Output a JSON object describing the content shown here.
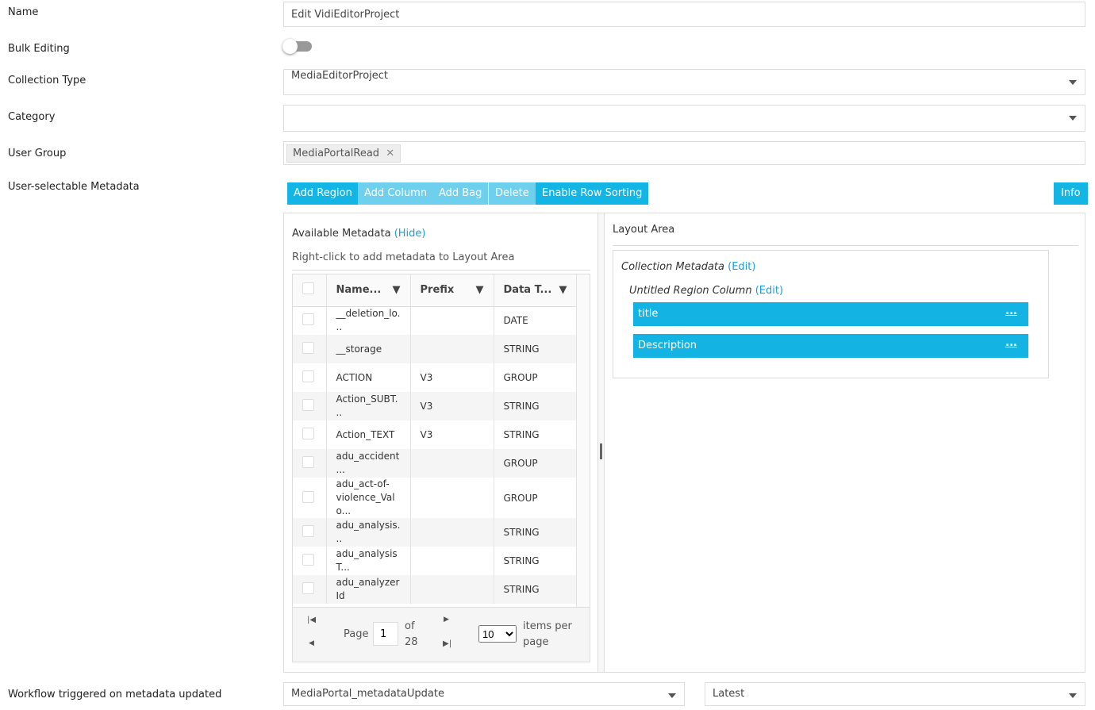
{
  "form": {
    "name": {
      "label": "Name",
      "value": "Edit VidiEditorProject"
    },
    "bulk_editing": {
      "label": "Bulk Editing"
    },
    "collection_type": {
      "label": "Collection Type",
      "value": "MediaEditorProject"
    },
    "category": {
      "label": "Category"
    },
    "user_group": {
      "label": "User Group",
      "tag": "MediaPortalRead"
    },
    "metadata": {
      "label": "User-selectable Metadata",
      "buttons": [
        "Add Region",
        "Add Column",
        "Add Bag",
        "Delete",
        "Enable Row Sorting"
      ],
      "info": "Info",
      "available": {
        "title": "Available Metadata",
        "toggle": "(Hide)",
        "hint": "Right-click to add metadata to Layout Area",
        "columns": [
          "Name...",
          "Prefix",
          "Data T..."
        ],
        "rows": [
          {
            "name": "__deletion_lo...",
            "type": "DATE"
          },
          {
            "name": "__storage",
            "type": "STRING"
          },
          {
            "name": "ACTION",
            "prefix": "V3",
            "type": "GROUP"
          },
          {
            "name": "Action_SUBT...",
            "prefix": "V3",
            "type": "STRING"
          },
          {
            "name": "Action_TEXT",
            "prefix": "V3",
            "type": "STRING"
          },
          {
            "name": "adu_accident...",
            "type": "GROUP"
          },
          {
            "name": "adu_act-of-violence_Valo...",
            "type": "GROUP"
          },
          {
            "name": "adu_analysis...",
            "type": "STRING"
          },
          {
            "name": "adu_analysisT...",
            "type": "STRING"
          },
          {
            "name": "adu_analyzerId",
            "type": "STRING"
          }
        ],
        "pager": {
          "page_label": "Page",
          "page": 1,
          "of": "of",
          "total": 28,
          "page_size": 10,
          "per_page": "items per page"
        }
      },
      "layout": {
        "title": "Layout Area",
        "collection": "Collection Metadata",
        "collection_edit": "(Edit)",
        "region": "Untitled Region Column",
        "region_edit": "(Edit)",
        "items": [
          "title",
          "Description"
        ],
        "item_action": "..."
      }
    },
    "workflow": {
      "label": "Workflow triggered on metadata updated",
      "value": "MediaPortal_metadataUpdate",
      "version": "Latest"
    }
  }
}
